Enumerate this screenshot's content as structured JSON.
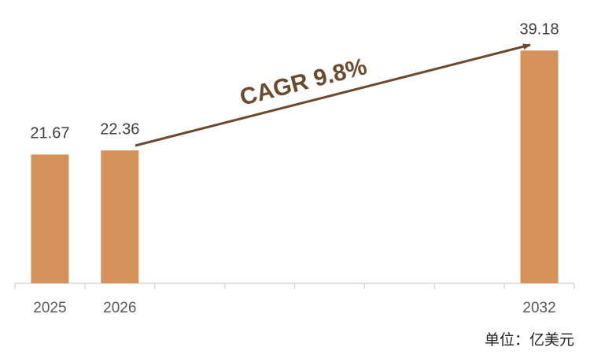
{
  "chart_data": {
    "type": "bar",
    "categories": [
      "2025",
      "2026",
      null,
      null,
      null,
      null,
      null,
      "2032"
    ],
    "values": [
      21.67,
      22.36,
      null,
      null,
      null,
      null,
      null,
      39.18
    ],
    "color": "#d4915a",
    "ylim": [
      0,
      40
    ],
    "annotation": "CAGR 9.8%",
    "unit_note": "单位：亿美元"
  }
}
